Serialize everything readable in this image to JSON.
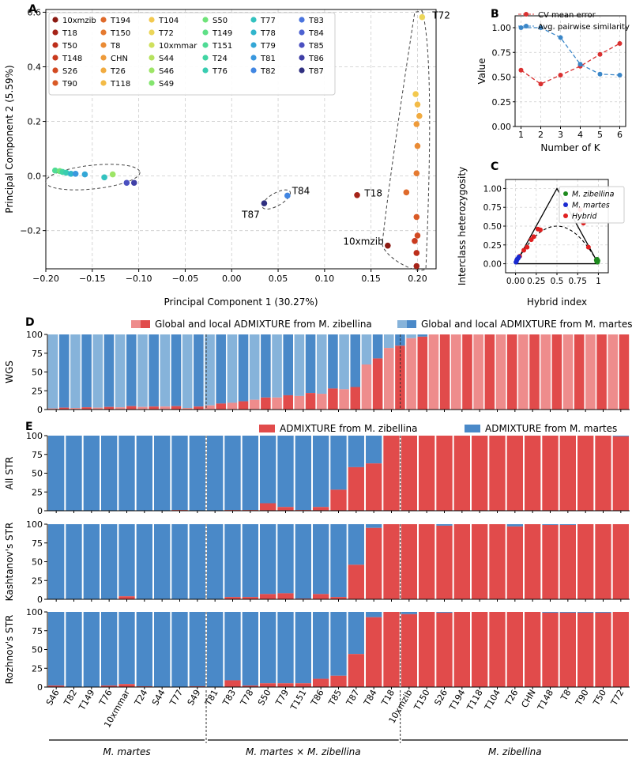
{
  "colors": {
    "red": "#e14b4b",
    "red_light": "#ee8c8c",
    "blue": "#4a89c8",
    "blue_light": "#86b3da",
    "grid": "#cccccc",
    "dash": "#444444"
  },
  "panel_letters": [
    "A",
    "B",
    "C",
    "D",
    "E"
  ],
  "chart_data": [
    {
      "id": "A",
      "type": "scatter",
      "xlabel": "Principal Component 1 (30.27%)",
      "ylabel": "Principal Component 2 (5.59%)",
      "xlim": [
        -0.2,
        0.22
      ],
      "ylim": [
        -0.34,
        0.61
      ],
      "xticks": [
        -0.2,
        -0.15,
        -0.1,
        -0.05,
        0.0,
        0.05,
        0.1,
        0.15,
        0.2
      ],
      "xticklabels": [
        "−0.20",
        "−0.15",
        "−0.10",
        "−0.05",
        "0.00",
        "0.05",
        "0.10",
        "0.15",
        "0.20"
      ],
      "yticks": [
        -0.2,
        0.0,
        0.2,
        0.4,
        0.6
      ],
      "yticklabels": [
        "−0.2",
        "0.0",
        "0.2",
        "0.4",
        "0.6"
      ],
      "legend_columns": [
        [
          [
            "10xmzib",
            "#8b1a12"
          ],
          [
            "T18",
            "#a52318"
          ],
          [
            "T50",
            "#bd2e1b"
          ],
          [
            "T148",
            "#c93a1e"
          ],
          [
            "S26",
            "#d24a22"
          ],
          [
            "T90",
            "#d95a26"
          ]
        ],
        [
          [
            "T194",
            "#df6a2b"
          ],
          [
            "T150",
            "#e57a30"
          ],
          [
            "T8",
            "#ea8b35"
          ],
          [
            "CHN",
            "#ee9b3a"
          ],
          [
            "T26",
            "#f1ab40"
          ],
          [
            "T118",
            "#f3bb47"
          ]
        ],
        [
          [
            "T104",
            "#f3c94f"
          ],
          [
            "T72",
            "#ecd65a"
          ],
          [
            "10xmmar",
            "#cfe05c"
          ],
          [
            "S44",
            "#b6e25f"
          ],
          [
            "S46",
            "#9de566"
          ],
          [
            "S49",
            "#84e56f"
          ]
        ],
        [
          [
            "S50",
            "#6fe37a"
          ],
          [
            "T149",
            "#5fe087"
          ],
          [
            "T151",
            "#4fdb95"
          ],
          [
            "T24",
            "#42d5a3"
          ],
          [
            "T76",
            "#39ccb1"
          ]
        ],
        [
          [
            "T77",
            "#33c2bf"
          ],
          [
            "T78",
            "#31b5cc"
          ],
          [
            "T79",
            "#34a7d6"
          ],
          [
            "T81",
            "#3a98de"
          ],
          [
            "T82",
            "#4186e2"
          ]
        ],
        [
          [
            "T83",
            "#4a74de"
          ],
          [
            "T84",
            "#4d62d2"
          ],
          [
            "T85",
            "#4a50c0"
          ],
          [
            "T86",
            "#3f3fa6"
          ],
          [
            "T87",
            "#2f2f80"
          ]
        ]
      ],
      "points": [
        [
          -0.19,
          0.02,
          "#4fdb95"
        ],
        [
          -0.185,
          0.018,
          "#6fe37a"
        ],
        [
          -0.182,
          0.015,
          "#42d5a3"
        ],
        [
          -0.178,
          0.012,
          "#39ccb1"
        ],
        [
          -0.173,
          0.008,
          "#31b5cc"
        ],
        [
          -0.168,
          0.008,
          "#3a98de"
        ],
        [
          -0.158,
          0.006,
          "#34a7d6"
        ],
        [
          -0.137,
          -0.005,
          "#33c2bf"
        ],
        [
          -0.128,
          0.006,
          "#9de566"
        ],
        [
          -0.113,
          -0.025,
          "#4a50c0"
        ],
        [
          -0.105,
          -0.025,
          "#3f3fa6"
        ],
        [
          0.035,
          -0.1,
          "#2f2f80"
        ],
        [
          0.06,
          -0.072,
          "#4186e2"
        ],
        [
          0.135,
          -0.07,
          "#a52318"
        ],
        [
          0.168,
          -0.255,
          "#8b1a12"
        ],
        [
          0.205,
          0.582,
          "#ecd65a"
        ],
        [
          0.198,
          0.3,
          "#f3c94f"
        ],
        [
          0.2,
          0.262,
          "#f3bb47"
        ],
        [
          0.202,
          0.22,
          "#f1ab40"
        ],
        [
          0.199,
          0.19,
          "#ee9b3a"
        ],
        [
          0.2,
          0.11,
          "#ea8b35"
        ],
        [
          0.199,
          0.01,
          "#e57a30"
        ],
        [
          0.188,
          -0.06,
          "#df6a2b"
        ],
        [
          0.199,
          -0.15,
          "#d95a26"
        ],
        [
          0.2,
          -0.218,
          "#d24a22"
        ],
        [
          0.197,
          -0.238,
          "#c93a1e"
        ],
        [
          0.199,
          -0.282,
          "#bd2e1b"
        ],
        [
          0.199,
          -0.33,
          "#a52318"
        ]
      ],
      "annotations": [
        [
          "T72",
          0.216,
          0.588
        ],
        [
          "T84",
          0.065,
          -0.055
        ],
        [
          "T87",
          0.011,
          -0.142
        ],
        [
          "T18",
          0.143,
          -0.063
        ],
        [
          "10xmzib",
          0.12,
          -0.24
        ]
      ]
    },
    {
      "id": "B",
      "type": "line",
      "xlabel": "Number of K",
      "ylabel": "Value",
      "xlim": [
        0.7,
        6.3
      ],
      "ylim": [
        0.0,
        1.12
      ],
      "xticks": [
        1,
        2,
        3,
        4,
        5,
        6
      ],
      "yticks": [
        0.0,
        0.25,
        0.5,
        0.75,
        1.0
      ],
      "yticklabels": [
        "0.00",
        "0.25",
        "0.50",
        "0.75",
        "1.00"
      ],
      "x": [
        1,
        2,
        3,
        4,
        5,
        6
      ],
      "series": [
        {
          "name": "CV mean error",
          "color": "#d93030",
          "values": [
            0.57,
            0.43,
            0.52,
            0.61,
            0.73,
            0.84
          ]
        },
        {
          "name": "Avg. pairwise similarity",
          "color": "#3a86c8",
          "values": [
            1.0,
            1.0,
            0.9,
            0.63,
            0.53,
            0.52
          ]
        }
      ]
    },
    {
      "id": "C",
      "type": "scatter",
      "xlabel": "Hybrid index",
      "ylabel": "Interclass heterozygosity",
      "xlim": [
        -0.12,
        1.12
      ],
      "ylim": [
        -0.12,
        1.12
      ],
      "xticks": [
        0.0,
        0.25,
        0.5,
        0.75,
        1.0
      ],
      "xticklabels": [
        "0.00",
        "0.25",
        "0.5",
        "0.75",
        "1"
      ],
      "yticks": [
        0.0,
        0.25,
        0.5,
        0.75,
        1.0
      ],
      "yticklabels": [
        "0.00",
        "0.25",
        "0.50",
        "0.75",
        "1.00"
      ],
      "legend": [
        [
          "M. zibellina",
          "#1e8a1e"
        ],
        [
          "M. martes",
          "#1a2ad0"
        ],
        [
          "Hybrid",
          "#e02020"
        ]
      ],
      "points_zibellina": [
        [
          0.98,
          0.03
        ],
        [
          0.985,
          0.06
        ],
        [
          0.99,
          0.02
        ],
        [
          0.995,
          0.04
        ],
        [
          0.975,
          0.05
        ]
      ],
      "points_martes": [
        [
          0.01,
          0.03
        ],
        [
          0.015,
          0.05
        ],
        [
          0.02,
          0.06
        ],
        [
          0.03,
          0.07
        ],
        [
          0.04,
          0.09
        ],
        [
          0.005,
          0.02
        ]
      ],
      "points_hybrid": [
        [
          0.05,
          0.1
        ],
        [
          0.1,
          0.18
        ],
        [
          0.14,
          0.22
        ],
        [
          0.19,
          0.32
        ],
        [
          0.22,
          0.36
        ],
        [
          0.27,
          0.46
        ],
        [
          0.3,
          0.45
        ],
        [
          0.78,
          0.72
        ],
        [
          0.82,
          0.54
        ],
        [
          0.88,
          0.22
        ]
      ]
    },
    {
      "id": "D",
      "type": "bar",
      "ylabel": "WGS",
      "yticks": [
        0,
        25,
        50,
        75,
        100
      ],
      "legend": [
        "Global and local ADMIXTURE from M. zibellina",
        "Global and local ADMIXTURE from M. martes"
      ],
      "global_zibellina": [
        1.5,
        1.5,
        2,
        2,
        2.5,
        2.5,
        3,
        3,
        3.5,
        3.5,
        4,
        4,
        2,
        2,
        5.5,
        5.5,
        9,
        9,
        13,
        13,
        16,
        16,
        18,
        18,
        21,
        21,
        27,
        27,
        60,
        60,
        82,
        82,
        95,
        95,
        100,
        100,
        100,
        100,
        100,
        100,
        100,
        100,
        100,
        100,
        100,
        100,
        100,
        100,
        100,
        100,
        100,
        100
      ],
      "local_zibellina": [
        2.5,
        2.5,
        3,
        3,
        3.5,
        3.5,
        4.5,
        4.5,
        4,
        4,
        4.5,
        4.5,
        4,
        4,
        8,
        8,
        11,
        11,
        16,
        16,
        19,
        19,
        22,
        22,
        28,
        28,
        30,
        30,
        68,
        68,
        85,
        85,
        97,
        97,
        100,
        100,
        100,
        100,
        100,
        100,
        100,
        100,
        100,
        100,
        100,
        100,
        100,
        100,
        100,
        100,
        100,
        100
      ]
    },
    {
      "id": "E",
      "type": "bar",
      "legend": [
        "ADMIXTURE from M. zibellina",
        "ADMIXTURE from M. martes"
      ],
      "samples": [
        "S46",
        "T82",
        "T149",
        "T76",
        "10xmmar",
        "T24",
        "S44",
        "T77",
        "S49",
        "T81",
        "T83",
        "T78",
        "S50",
        "T79",
        "T151",
        "T86",
        "T85",
        "T87",
        "T84",
        "T18",
        "10xmzib",
        "T150",
        "S26",
        "T194",
        "T118",
        "T104",
        "T26",
        "CHN",
        "T148",
        "T8",
        "T90",
        "T50",
        "T72"
      ],
      "groups": [
        "M. martes",
        "M. martes × M. zibellina",
        "M. zibellina"
      ],
      "yticks": [
        0,
        25,
        50,
        75,
        100
      ],
      "series": [
        {
          "name": "All STR",
          "values": [
            0,
            0,
            0,
            0,
            0,
            0,
            0,
            1,
            0,
            0,
            1,
            1,
            10,
            5,
            1,
            5,
            28,
            58,
            63,
            100,
            100,
            100,
            100,
            100,
            100,
            100,
            100,
            100,
            100,
            100,
            100,
            100,
            99
          ]
        },
        {
          "name": "Kashtanov's STR",
          "values": [
            0,
            0,
            0,
            0,
            4,
            0,
            0,
            0,
            0,
            0,
            3,
            3,
            7,
            8,
            1,
            7,
            3,
            46,
            95,
            100,
            100,
            100,
            98,
            100,
            100,
            100,
            97,
            100,
            99,
            99,
            100,
            100,
            100
          ]
        },
        {
          "name": "Rozhnov's STR",
          "values": [
            2,
            0,
            0,
            2,
            4,
            1,
            0,
            0,
            1,
            0,
            9,
            2,
            5,
            5,
            5,
            11,
            15,
            44,
            93,
            100,
            97,
            100,
            99,
            100,
            100,
            100,
            100,
            100,
            99,
            99,
            99,
            99,
            100
          ]
        }
      ]
    }
  ]
}
